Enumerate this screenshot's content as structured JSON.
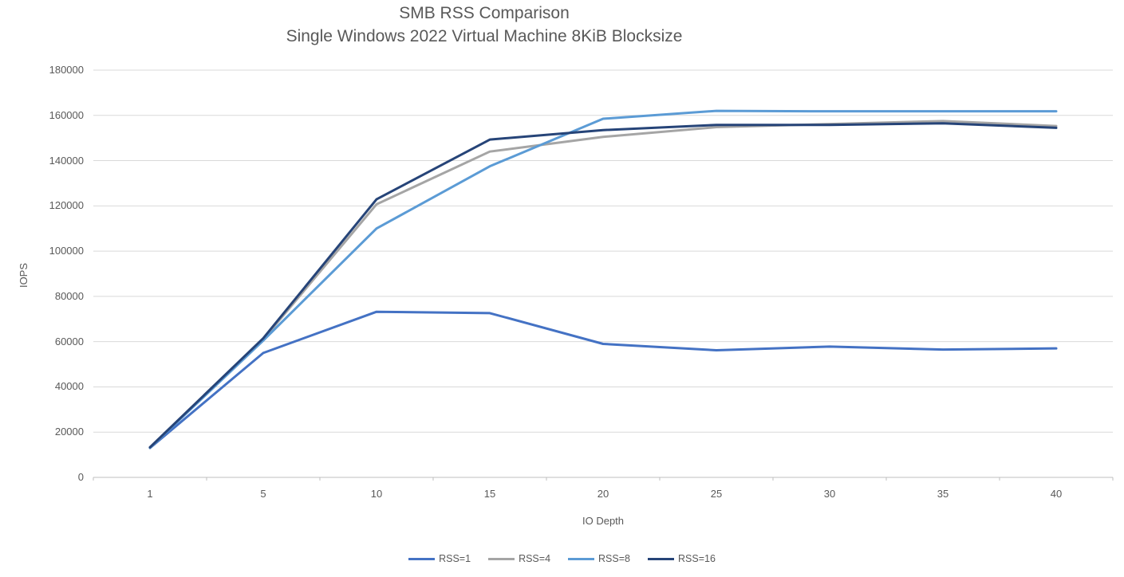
{
  "chart": {
    "title": "SMB RSS Comparison",
    "subtitle": "Single Windows 2022 Virtual Machine 8KiB Blocksize",
    "xlabel": "IO Depth",
    "ylabel": "IOPS"
  },
  "chart_data": {
    "type": "line",
    "title": "SMB RSS Comparison",
    "subtitle": "Single Windows 2022 Virtual Machine 8KiB Blocksize",
    "xlabel": "IO Depth",
    "ylabel": "IOPS",
    "categories": [
      1,
      5,
      10,
      15,
      20,
      25,
      30,
      35,
      40
    ],
    "ylim": [
      0,
      180000
    ],
    "ytick_step": 20000,
    "ytick_labels": [
      "0",
      "20000",
      "40000",
      "60000",
      "80000",
      "100000",
      "120000",
      "140000",
      "160000",
      "180000"
    ],
    "grid": true,
    "legend_position": "bottom",
    "series": [
      {
        "name": "RSS=1",
        "color": "#4472c4",
        "values": [
          13000,
          55000,
          73200,
          72600,
          59000,
          56200,
          57800,
          56500,
          57000
        ]
      },
      {
        "name": "RSS=4",
        "color": "#a5a5a5",
        "values": [
          13200,
          61000,
          120700,
          144000,
          150500,
          154800,
          156200,
          157500,
          155300
        ]
      },
      {
        "name": "RSS=8",
        "color": "#5b9bd5",
        "values": [
          13100,
          60500,
          110000,
          137500,
          158500,
          162000,
          161800,
          161800,
          161800
        ]
      },
      {
        "name": "RSS=16",
        "color": "#264478",
        "values": [
          13300,
          61500,
          122900,
          149300,
          153500,
          155800,
          155800,
          156500,
          154500
        ]
      }
    ]
  },
  "colors": {
    "gridline": "#d9d9d9",
    "axis_line": "#bfbfbf",
    "text": "#595959"
  }
}
